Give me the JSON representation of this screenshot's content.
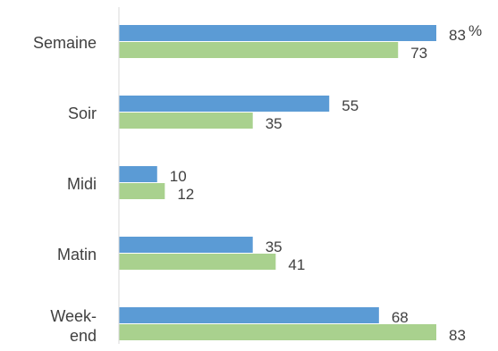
{
  "chart_data": {
    "type": "bar",
    "orientation": "horizontal",
    "categories": [
      "Semaine",
      "Soir",
      "Midi",
      "Matin",
      "Week-end"
    ],
    "series": [
      {
        "values": [
          83,
          55,
          10,
          35,
          68
        ],
        "color": "#5B9BD5"
      },
      {
        "values": [
          73,
          35,
          12,
          41,
          83
        ],
        "color": "#A9D18E"
      }
    ],
    "unit_label": "%",
    "xlim": [
      0,
      83
    ],
    "grid": false,
    "legend": "none"
  }
}
